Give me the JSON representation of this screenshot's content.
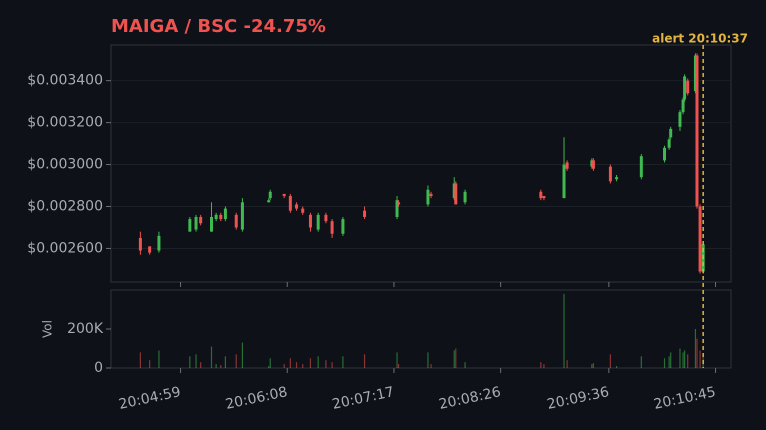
{
  "chart_data": {
    "type": "candlestick",
    "title": "MAIGA / BSC  -24.75%",
    "x": [
      "20:04:33",
      "20:04:39",
      "20:04:45",
      "20:05:05",
      "20:05:09",
      "20:05:12",
      "20:05:19",
      "20:05:22",
      "20:05:25",
      "20:05:28",
      "20:05:35",
      "20:05:39",
      "20:05:56",
      "20:05:57",
      "20:06:06",
      "20:06:10",
      "20:06:14",
      "20:06:18",
      "20:06:23",
      "20:06:28",
      "20:06:33",
      "20:06:37",
      "20:06:44",
      "20:06:58",
      "20:07:19",
      "20:07:20",
      "20:07:39",
      "20:07:41",
      "20:07:56",
      "20:07:57",
      "20:08:03",
      "20:08:52",
      "20:08:54",
      "20:09:07",
      "20:09:09",
      "20:09:25",
      "20:09:26",
      "20:09:37",
      "20:09:41",
      "20:09:57",
      "20:10:12",
      "20:10:15",
      "20:10:16",
      "20:10:22",
      "20:10:24",
      "20:10:25",
      "20:10:27",
      "20:10:32",
      "20:10:33",
      "20:10:35",
      "20:10:37"
    ],
    "open": [
      0.00265,
      0.00261,
      0.00259,
      0.00268,
      0.00269,
      0.00275,
      0.00268,
      0.00274,
      0.00276,
      0.00274,
      0.00276,
      0.00269,
      0.00282,
      0.00284,
      0.00286,
      0.00285,
      0.00281,
      0.00279,
      0.00276,
      0.00269,
      0.00276,
      0.00273,
      0.00267,
      0.00278,
      0.00275,
      0.00282,
      0.00281,
      0.00286,
      0.00284,
      0.00291,
      0.00282,
      0.00287,
      0.00285,
      0.00284,
      0.00301,
      0.00299,
      0.00302,
      0.00299,
      0.00293,
      0.00294,
      0.00302,
      0.00308,
      0.00313,
      0.00318,
      0.00325,
      0.00331,
      0.0034,
      0.00335,
      0.00352,
      0.0028,
      0.00249
    ],
    "high": [
      0.00268,
      0.00261,
      0.00268,
      0.00275,
      0.00276,
      0.00276,
      0.00282,
      0.00277,
      0.00277,
      0.0028,
      0.00277,
      0.00284,
      0.00284,
      0.00288,
      0.00286,
      0.00286,
      0.00282,
      0.0028,
      0.00277,
      0.00277,
      0.00277,
      0.00274,
      0.00275,
      0.0028,
      0.00285,
      0.00283,
      0.0029,
      0.00287,
      0.00294,
      0.00292,
      0.00288,
      0.00288,
      0.00285,
      0.00313,
      0.00302,
      0.00303,
      0.00303,
      0.003,
      0.00295,
      0.00305,
      0.00309,
      0.00313,
      0.00318,
      0.00326,
      0.00332,
      0.00343,
      0.00341,
      0.00353,
      0.00353,
      0.00281,
      0.00263
    ],
    "low": [
      0.00257,
      0.00257,
      0.00258,
      0.00268,
      0.00268,
      0.00271,
      0.00268,
      0.00273,
      0.00273,
      0.00273,
      0.00269,
      0.00268,
      0.00282,
      0.00283,
      0.00284,
      0.00277,
      0.00278,
      0.00276,
      0.00268,
      0.00268,
      0.00272,
      0.00265,
      0.00266,
      0.00274,
      0.00274,
      0.0028,
      0.0028,
      0.00284,
      0.00283,
      0.00281,
      0.00281,
      0.00283,
      0.00283,
      0.00284,
      0.00297,
      0.00298,
      0.00297,
      0.00291,
      0.00292,
      0.00293,
      0.00301,
      0.00307,
      0.00312,
      0.00316,
      0.00324,
      0.0033,
      0.00333,
      0.00334,
      0.00279,
      0.00248,
      0.00248
    ],
    "close": [
      0.00259,
      0.00258,
      0.00266,
      0.00274,
      0.00275,
      0.00272,
      0.00275,
      0.00276,
      0.00274,
      0.00279,
      0.0027,
      0.00282,
      0.00283,
      0.00287,
      0.00285,
      0.00278,
      0.00279,
      0.00277,
      0.0027,
      0.00276,
      0.00273,
      0.00267,
      0.00274,
      0.00275,
      0.00283,
      0.00281,
      0.00288,
      0.00285,
      0.00291,
      0.00281,
      0.00287,
      0.00284,
      0.00284,
      0.003,
      0.00298,
      0.00302,
      0.00298,
      0.00292,
      0.00294,
      0.00304,
      0.00308,
      0.00312,
      0.00317,
      0.00325,
      0.00331,
      0.00342,
      0.00334,
      0.00352,
      0.0028,
      0.00249,
      0.00262
    ],
    "volume": [
      80000,
      40000,
      90000,
      60000,
      70000,
      30000,
      110000,
      20000,
      15000,
      60000,
      70000,
      130000,
      10000,
      50000,
      20000,
      50000,
      30000,
      20000,
      50000,
      60000,
      40000,
      30000,
      60000,
      70000,
      80000,
      20000,
      80000,
      20000,
      90000,
      100000,
      30000,
      30000,
      20000,
      380000,
      40000,
      20000,
      25000,
      70000,
      10000,
      60000,
      50000,
      60000,
      80000,
      100000,
      80000,
      90000,
      70000,
      200000,
      150000,
      90000,
      60000
    ],
    "up_color": "#3fb950",
    "down_color": "#f0524f",
    "xlim": [
      "20:04:14",
      "20:10:55"
    ],
    "xticks": [
      "20:04:59",
      "20:06:08",
      "20:07:17",
      "20:08:26",
      "20:09:36",
      "20:10:45"
    ],
    "ylim": [
      0.00244,
      0.00357
    ],
    "yticks": [
      {
        "value": 0.0026,
        "label": "$0.002600"
      },
      {
        "value": 0.0028,
        "label": "$0.002800"
      },
      {
        "value": 0.003,
        "label": "$0.003000"
      },
      {
        "value": 0.0032,
        "label": "$0.003200"
      },
      {
        "value": 0.0034,
        "label": "$0.003400"
      }
    ],
    "volume_label": "Vol",
    "volume_ylim": [
      0,
      400000
    ],
    "volume_yticks": [
      0,
      {
        "value": 200000,
        "label": "200K"
      }
    ],
    "alert": {
      "label": "alert 20:10:37",
      "x": "20:10:37",
      "color": "#e3b341"
    },
    "grid": true
  }
}
